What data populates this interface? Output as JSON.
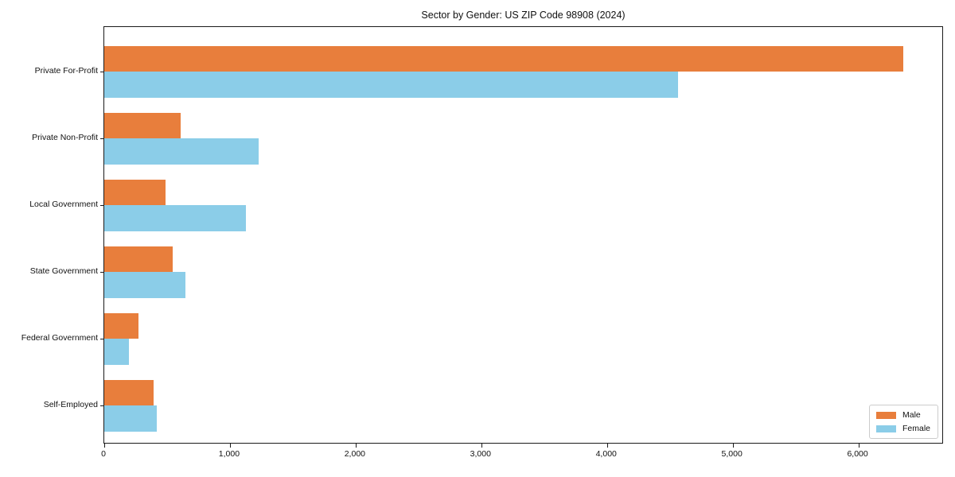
{
  "chart_data": {
    "type": "bar",
    "orientation": "horizontal",
    "title": "Sector by Gender: US ZIP Code 98908 (2024)",
    "categories": [
      "Private For-Profit",
      "Private Non-Profit",
      "Local Government",
      "State Government",
      "Federal Government",
      "Self-Employed"
    ],
    "series": [
      {
        "name": "Male",
        "color": "#e87e3c",
        "values": [
          6360,
          610,
          490,
          545,
          270,
          395
        ]
      },
      {
        "name": "Female",
        "color": "#8bcde8",
        "values": [
          4565,
          1230,
          1130,
          645,
          195,
          415
        ]
      }
    ],
    "xlabel": "",
    "ylabel": "",
    "xlim": [
      0,
      6680
    ],
    "x_tick_values": [
      0,
      1000,
      2000,
      3000,
      4000,
      5000,
      6000
    ],
    "x_tick_labels": [
      "0",
      "1,000",
      "2,000",
      "3,000",
      "4,000",
      "5,000",
      "6,000"
    ],
    "grid": false,
    "legend_position": "lower right",
    "colors": {
      "male": "#e87e3c",
      "female": "#8bcde8",
      "spine": "#1a1a1a",
      "text": "#111111"
    }
  }
}
